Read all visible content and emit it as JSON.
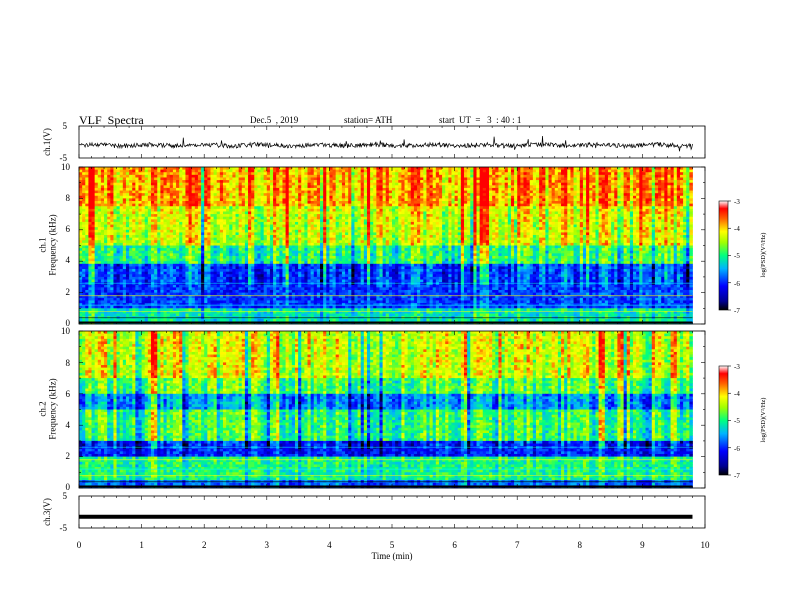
{
  "header": {
    "title": "VLF  Spectra",
    "date": "Dec.5  , 2019",
    "station": "station= ATH",
    "start": "start  UT  =   3  : 40 : 1"
  },
  "chart_data": [
    {
      "type": "line",
      "name": "ch1-waveform",
      "ylabel": "ch.1(V)",
      "ylim": [
        -5,
        5
      ],
      "yticks": [
        "5",
        "-5"
      ],
      "xlim": [
        0,
        10
      ],
      "trace": "noisy signal near -1 V, amplitude about ±1 V, ending at 9.8 min"
    },
    {
      "type": "heatmap",
      "name": "ch1-spectrogram",
      "ylabel": "ch.1\nFrequency  (kHz)",
      "ylim": [
        0,
        10
      ],
      "yticks": [
        "0",
        "2",
        "4",
        "6",
        "8",
        "10"
      ],
      "xlim": [
        0,
        10
      ],
      "colorbar": {
        "label": "log(PSD)(V²/Hz)",
        "range": [
          -7,
          -3
        ],
        "ticks": [
          "-3",
          "-4",
          "-5",
          "-6",
          "-7"
        ]
      }
    },
    {
      "type": "heatmap",
      "name": "ch2-spectrogram",
      "ylabel": "ch.2\nFrequency  (kHz)",
      "ylim": [
        0,
        10
      ],
      "yticks": [
        "0",
        "2",
        "4",
        "6",
        "8",
        "10"
      ],
      "xlim": [
        0,
        10
      ],
      "colorbar": {
        "label": "log(PSD)(V²/Hz)",
        "range": [
          -7,
          -3
        ],
        "ticks": [
          "-3",
          "-4",
          "-5",
          "-6",
          "-7"
        ]
      }
    },
    {
      "type": "line",
      "name": "ch3-waveform",
      "ylabel": "ch.3(V)",
      "ylim": [
        -5,
        5
      ],
      "yticks": [
        "5",
        "-5"
      ],
      "xlim": [
        0,
        10
      ],
      "xlabel": "Time  (min)",
      "xticks": [
        "0",
        "1",
        "2",
        "3",
        "4",
        "5",
        "6",
        "7",
        "8",
        "9",
        "10"
      ],
      "trace": "flat line near -1.5 V, ending at 9.8 min"
    }
  ]
}
